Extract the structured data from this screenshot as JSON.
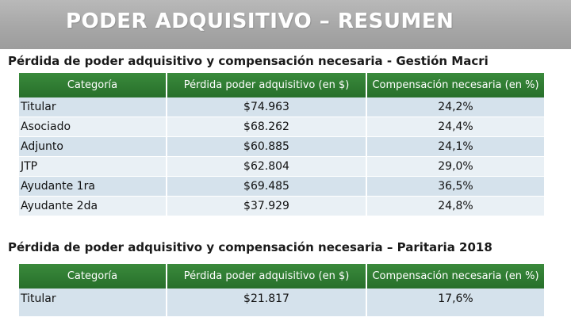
{
  "banner": {
    "title": "PODER ADQUISITIVO – RESUMEN"
  },
  "section1": {
    "title": "Pérdida de poder adquisitivo y compensación necesaria - Gestión Macri",
    "headers": [
      "Categoría",
      "Pérdida poder adquisitivo (en $)",
      "Compensación necesaria (en %)"
    ],
    "rows": [
      [
        "Titular",
        "$74.963",
        "24,2%"
      ],
      [
        "Asociado",
        "$68.262",
        "24,4%"
      ],
      [
        "Adjunto",
        "$60.885",
        "24,1%"
      ],
      [
        "JTP",
        "$62.804",
        "29,0%"
      ],
      [
        "Ayudante 1ra",
        "$69.485",
        "36,5%"
      ],
      [
        "Ayudante 2da",
        "$37.929",
        "24,8%"
      ]
    ]
  },
  "section2": {
    "title": "Pérdida de poder adquisitivo y compensación necesaria – Paritaria 2018",
    "headers": [
      "Categoría",
      "Pérdida poder adquisitivo (en $)",
      "Compensación necesaria (en %)"
    ],
    "rows": [
      [
        "Titular",
        "$21.817",
        "17,6%"
      ]
    ]
  },
  "colors": {
    "header_green": "#2e7d32",
    "row_blue_dark": "#d5e2ec",
    "row_blue_light": "#e9f0f5",
    "banner_gray": "#a7a7a7"
  }
}
